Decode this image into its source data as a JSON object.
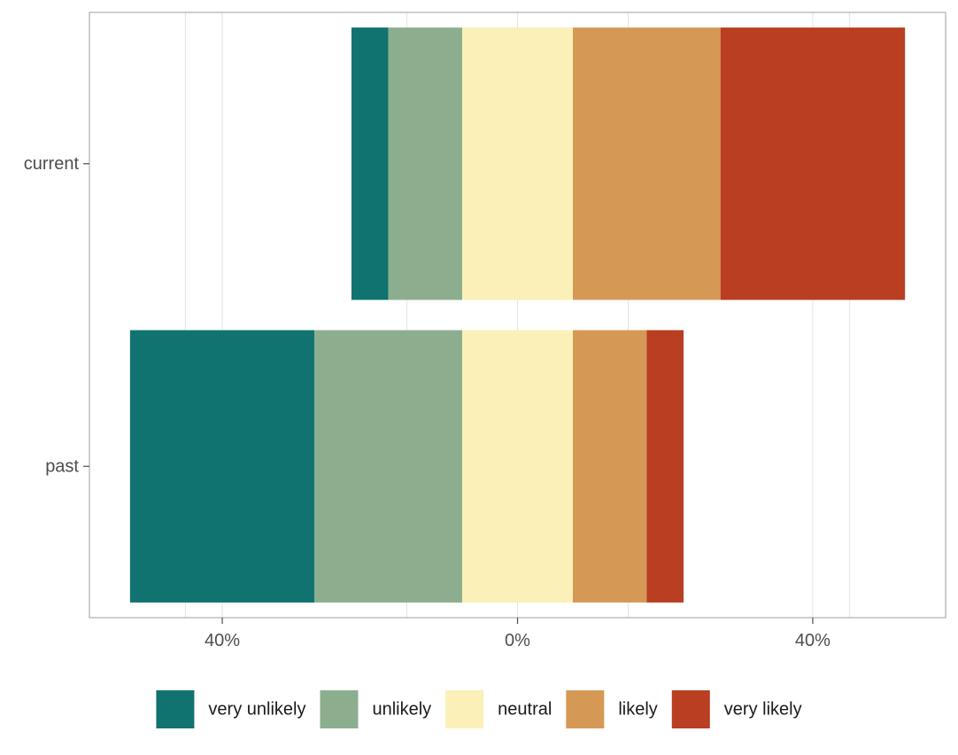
{
  "chart_data": {
    "type": "bar",
    "orientation": "horizontal",
    "stacked": "diverging",
    "categories": [
      "current",
      "past"
    ],
    "series": [
      {
        "name": "very unlikely",
        "color": "#11736f",
        "values": [
          5,
          25
        ]
      },
      {
        "name": "unlikely",
        "color": "#8cae8f",
        "values": [
          10,
          20
        ]
      },
      {
        "name": "neutral",
        "color": "#faf0b8",
        "values": [
          15,
          15
        ]
      },
      {
        "name": "likely",
        "color": "#d59955",
        "values": [
          20,
          10
        ]
      },
      {
        "name": "very likely",
        "color": "#b93e22",
        "values": [
          25,
          5
        ]
      }
    ],
    "neutral_split": true,
    "xlim": [
      -58,
      58
    ],
    "x_ticks": [
      {
        "value": -40,
        "label": "40%"
      },
      {
        "value": 0,
        "label": "0%"
      },
      {
        "value": 40,
        "label": "40%"
      }
    ],
    "minor_gridlines": [
      -45,
      -15,
      15,
      45
    ],
    "grid": true,
    "legend_position": "bottom",
    "title": "",
    "xlabel": "",
    "ylabel": ""
  }
}
